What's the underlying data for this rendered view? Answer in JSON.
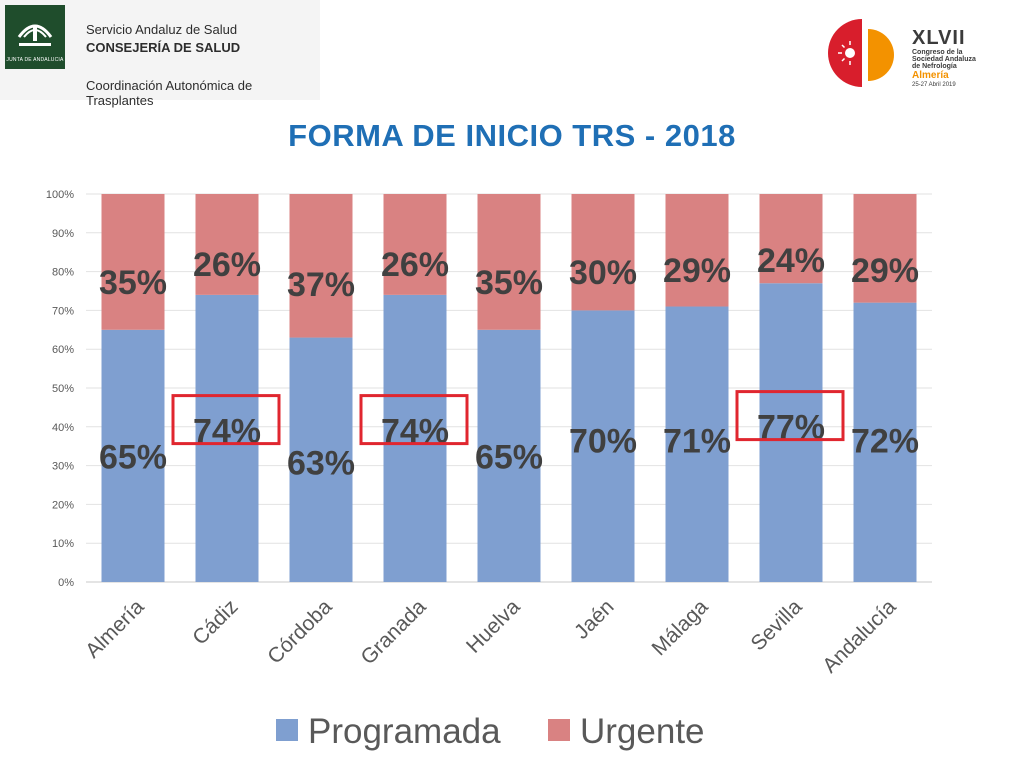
{
  "header": {
    "org_line1": "Servicio Andaluz de Salud",
    "org_line2": "CONSEJERÍA DE SALUD",
    "org_line3": "Coordinación Autonómica de Trasplantes",
    "junta_logo_text": "JUNTA DE ANDALUCIA"
  },
  "congress": {
    "number": "XLVII",
    "line1": "Congreso de la",
    "line2": "Sociedad Andaluza",
    "line3": "de Nefrología",
    "city": "Almería",
    "dates": "25-27 Abril 2019",
    "colors": {
      "red": "#d81e2c",
      "orange": "#f39200"
    }
  },
  "chart_data": {
    "type": "bar",
    "stacked": true,
    "title": "FORMA DE INICIO TRS - 2018",
    "categories": [
      "Almería",
      "Cádiz",
      "Córdoba",
      "Granada",
      "Huelva",
      "Jaén",
      "Málaga",
      "Sevilla",
      "Andalucía"
    ],
    "series": [
      {
        "name": "Programada",
        "color": "#7f9fd0",
        "values": [
          65,
          74,
          63,
          74,
          65,
          70,
          71,
          77,
          72
        ],
        "labels": [
          "65%",
          "74%",
          "63%",
          "74%",
          "65%",
          "70%",
          "71%",
          "77%",
          "72%"
        ]
      },
      {
        "name": "Urgente",
        "color": "#d98282",
        "values": [
          35,
          26,
          37,
          26,
          35,
          30,
          29,
          24,
          29
        ],
        "labels": [
          "35%",
          "26%",
          "37%",
          "26%",
          "35%",
          "30%",
          "29%",
          "24%",
          "29%"
        ]
      }
    ],
    "y_ticks": [
      "0%",
      "10%",
      "20%",
      "30%",
      "40%",
      "50%",
      "60%",
      "70%",
      "80%",
      "90%",
      "100%"
    ],
    "ylim": [
      0,
      100
    ],
    "grid": true,
    "legend_position": "bottom",
    "highlighted_categories": [
      "Cádiz",
      "Granada",
      "Sevilla"
    ],
    "highlight_color": "#e0262f"
  }
}
